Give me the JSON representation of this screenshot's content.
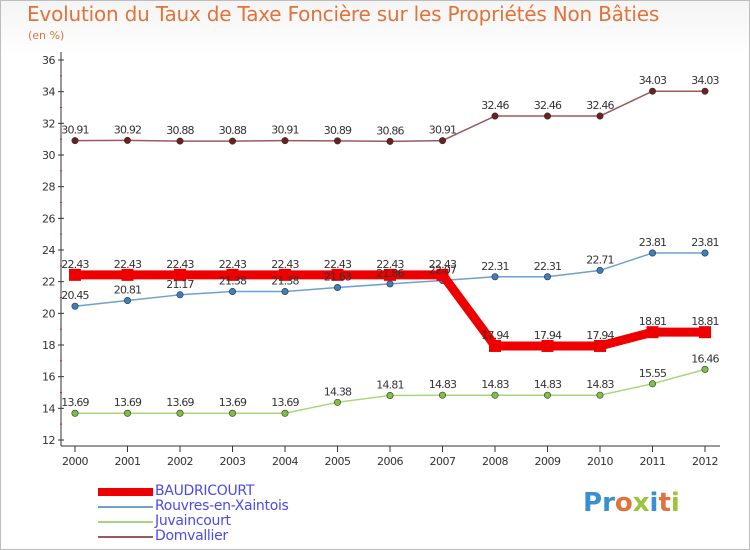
{
  "title": "Evolution du Taux de Taxe Foncière sur les Propriétés Non Bâties",
  "unit": "(en %)",
  "logo": {
    "letters": [
      {
        "ch": "P",
        "color": "#3a8fd0"
      },
      {
        "ch": "r",
        "color": "#3a8fd0"
      },
      {
        "ch": "o",
        "color": "#e0733a"
      },
      {
        "ch": "x",
        "color": "#9bc53d"
      },
      {
        "ch": "i",
        "color": "#3a8fd0"
      },
      {
        "ch": "t",
        "color": "#e0733a"
      },
      {
        "ch": "i",
        "color": "#9bc53d"
      }
    ]
  },
  "chart_data": {
    "type": "line",
    "title": "Evolution du Taux de Taxe Foncière sur les Propriétés Non Bâties",
    "ylabel": "(en %)",
    "xlabel": "",
    "x": [
      "2000",
      "2001",
      "2002",
      "2003",
      "2004",
      "2005",
      "2006",
      "2007",
      "2008",
      "2009",
      "2010",
      "2011",
      "2012"
    ],
    "ylim": [
      12,
      36
    ],
    "yticks": [
      12,
      14,
      16,
      18,
      20,
      22,
      24,
      26,
      28,
      30,
      32,
      34,
      36
    ],
    "grid": false,
    "legend": "bottom-left",
    "series": [
      {
        "name": "BAUDRICOURT",
        "color": "#ee0000",
        "thick": true,
        "values": [
          22.43,
          22.43,
          22.43,
          22.43,
          22.43,
          22.43,
          22.43,
          22.43,
          17.94,
          17.94,
          17.94,
          18.81,
          18.81
        ],
        "labels": [
          "22.43",
          "22.43",
          "22.43",
          "22.43",
          "22.43",
          "22.43",
          "22.43",
          "22.43",
          "17.94",
          "17.94",
          "17.94",
          "18.81",
          "18.81"
        ]
      },
      {
        "name": "Rouvres-en-Xaintois",
        "color": "#6fa0cf",
        "marker": "#3a7fc0",
        "values": [
          20.45,
          20.81,
          21.17,
          21.38,
          21.38,
          21.63,
          21.86,
          22.07,
          22.31,
          22.31,
          22.71,
          23.81,
          23.81
        ],
        "labels": [
          "20.45",
          "20.81",
          "21.17",
          "21.38",
          "21.38",
          "21.63",
          "21.86",
          "22.07",
          "22.31",
          "22.31",
          "22.71",
          "23.81",
          "23.81"
        ]
      },
      {
        "name": "Juvaincourt",
        "color": "#a9d67a",
        "marker": "#7cc242",
        "values": [
          13.69,
          13.69,
          13.69,
          13.69,
          13.69,
          14.38,
          14.81,
          14.83,
          14.83,
          14.83,
          14.83,
          15.55,
          16.46
        ],
        "labels": [
          "13.69",
          "13.69",
          "13.69",
          "13.69",
          "13.69",
          "14.38",
          "14.81",
          "14.83",
          "14.83",
          "14.83",
          "14.83",
          "15.55",
          "16.46"
        ]
      },
      {
        "name": "Domvallier",
        "color": "#9b5a5a",
        "marker": "#6e1f1f",
        "values": [
          30.91,
          30.92,
          30.88,
          30.88,
          30.91,
          30.89,
          30.86,
          30.91,
          32.46,
          32.46,
          32.46,
          34.03,
          34.03
        ],
        "labels": [
          "30.91",
          "30.92",
          "30.88",
          "30.88",
          "30.91",
          "30.89",
          "30.86",
          "30.91",
          "32.46",
          "32.46",
          "32.46",
          "34.03",
          "34.03"
        ]
      }
    ]
  }
}
